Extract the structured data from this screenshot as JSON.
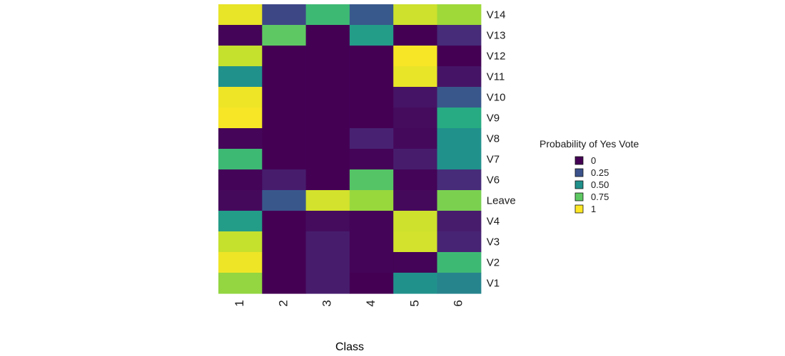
{
  "chart_data": {
    "type": "heatmap",
    "xlabel": "Class",
    "ylabel": "",
    "x_categories": [
      "1",
      "2",
      "3",
      "4",
      "5",
      "6"
    ],
    "y_categories": [
      "V14",
      "V13",
      "V12",
      "V11",
      "V10",
      "V9",
      "V8",
      "V7",
      "V6",
      "Leave",
      "V4",
      "V3",
      "V2",
      "V1"
    ],
    "values": [
      [
        0.97,
        0.22,
        0.68,
        0.28,
        0.93,
        0.86
      ],
      [
        0.01,
        0.75,
        0.0,
        0.55,
        0.0,
        0.15
      ],
      [
        0.92,
        0.0,
        0.0,
        0.0,
        0.99,
        0.0
      ],
      [
        0.5,
        0.0,
        0.0,
        0.0,
        0.97,
        0.07
      ],
      [
        0.98,
        0.0,
        0.0,
        0.0,
        0.07,
        0.27
      ],
      [
        0.99,
        0.0,
        0.0,
        0.0,
        0.04,
        0.62
      ],
      [
        0.02,
        0.0,
        0.0,
        0.12,
        0.03,
        0.5
      ],
      [
        0.68,
        0.0,
        0.0,
        0.01,
        0.1,
        0.5
      ],
      [
        0.01,
        0.1,
        0.0,
        0.73,
        0.01,
        0.15
      ],
      [
        0.03,
        0.27,
        0.94,
        0.85,
        0.03,
        0.8
      ],
      [
        0.55,
        0.0,
        0.04,
        0.01,
        0.93,
        0.1
      ],
      [
        0.92,
        0.0,
        0.1,
        0.01,
        0.94,
        0.13
      ],
      [
        0.98,
        0.0,
        0.1,
        0.01,
        0.01,
        0.68
      ],
      [
        0.84,
        0.0,
        0.1,
        0.0,
        0.5,
        0.45
      ]
    ],
    "colorscale": "viridis",
    "legend": {
      "title": "Probability of Yes Vote",
      "placement": "right",
      "entries": [
        {
          "label": "0",
          "value": 0
        },
        {
          "label": "0.25",
          "value": 0.25
        },
        {
          "label": "0.50",
          "value": 0.5
        },
        {
          "label": "0.75",
          "value": 0.75
        },
        {
          "label": "1",
          "value": 1
        }
      ]
    }
  }
}
